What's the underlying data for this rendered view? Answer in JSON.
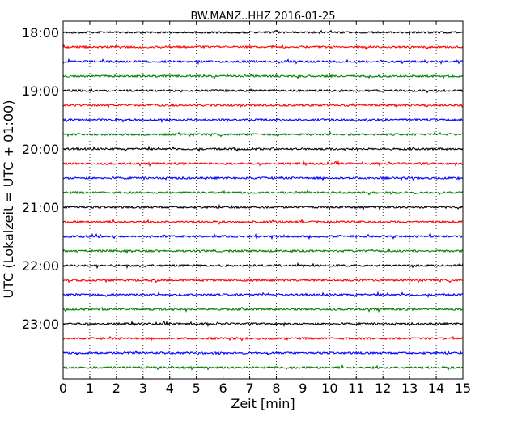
{
  "chart_data": {
    "type": "line",
    "title": "BW.MANZ..HHZ 2016-01-25",
    "xlabel": "Zeit  [min]",
    "ylabel": "UTC (Lokalzeit = UTC + 01:00)",
    "xlim": [
      0,
      15
    ],
    "x_ticks": [
      "0",
      "1",
      "2",
      "3",
      "4",
      "5",
      "6",
      "7",
      "8",
      "9",
      "10",
      "11",
      "12",
      "13",
      "14",
      "15"
    ],
    "y_tick_labels": [
      "18:00",
      "19:00",
      "20:00",
      "21:00",
      "22:00",
      "23:00"
    ],
    "grid": "vertical dotted at each minute",
    "trace_interval_minutes": 15,
    "trace_colors": [
      "#000000",
      "#ff0000",
      "#0000ff",
      "#008000"
    ],
    "series": [
      {
        "start": "18:00",
        "values": []
      },
      {
        "start": "18:15",
        "values": []
      },
      {
        "start": "18:30",
        "values": []
      },
      {
        "start": "18:45",
        "values": []
      },
      {
        "start": "19:00",
        "values": []
      },
      {
        "start": "19:15",
        "values": []
      },
      {
        "start": "19:30",
        "values": []
      },
      {
        "start": "19:45",
        "values": []
      },
      {
        "start": "20:00",
        "values": []
      },
      {
        "start": "20:15",
        "values": []
      },
      {
        "start": "20:30",
        "values": []
      },
      {
        "start": "20:45",
        "values": []
      },
      {
        "start": "21:00",
        "values": []
      },
      {
        "start": "21:15",
        "values": []
      },
      {
        "start": "21:30",
        "values": []
      },
      {
        "start": "21:45",
        "values": []
      },
      {
        "start": "22:00",
        "values": []
      },
      {
        "start": "22:15",
        "values": []
      },
      {
        "start": "22:30",
        "values": []
      },
      {
        "start": "22:45",
        "values": []
      },
      {
        "start": "23:00",
        "values": []
      },
      {
        "start": "23:15",
        "values": []
      },
      {
        "start": "23:30",
        "values": []
      },
      {
        "start": "23:45",
        "values": []
      }
    ]
  }
}
